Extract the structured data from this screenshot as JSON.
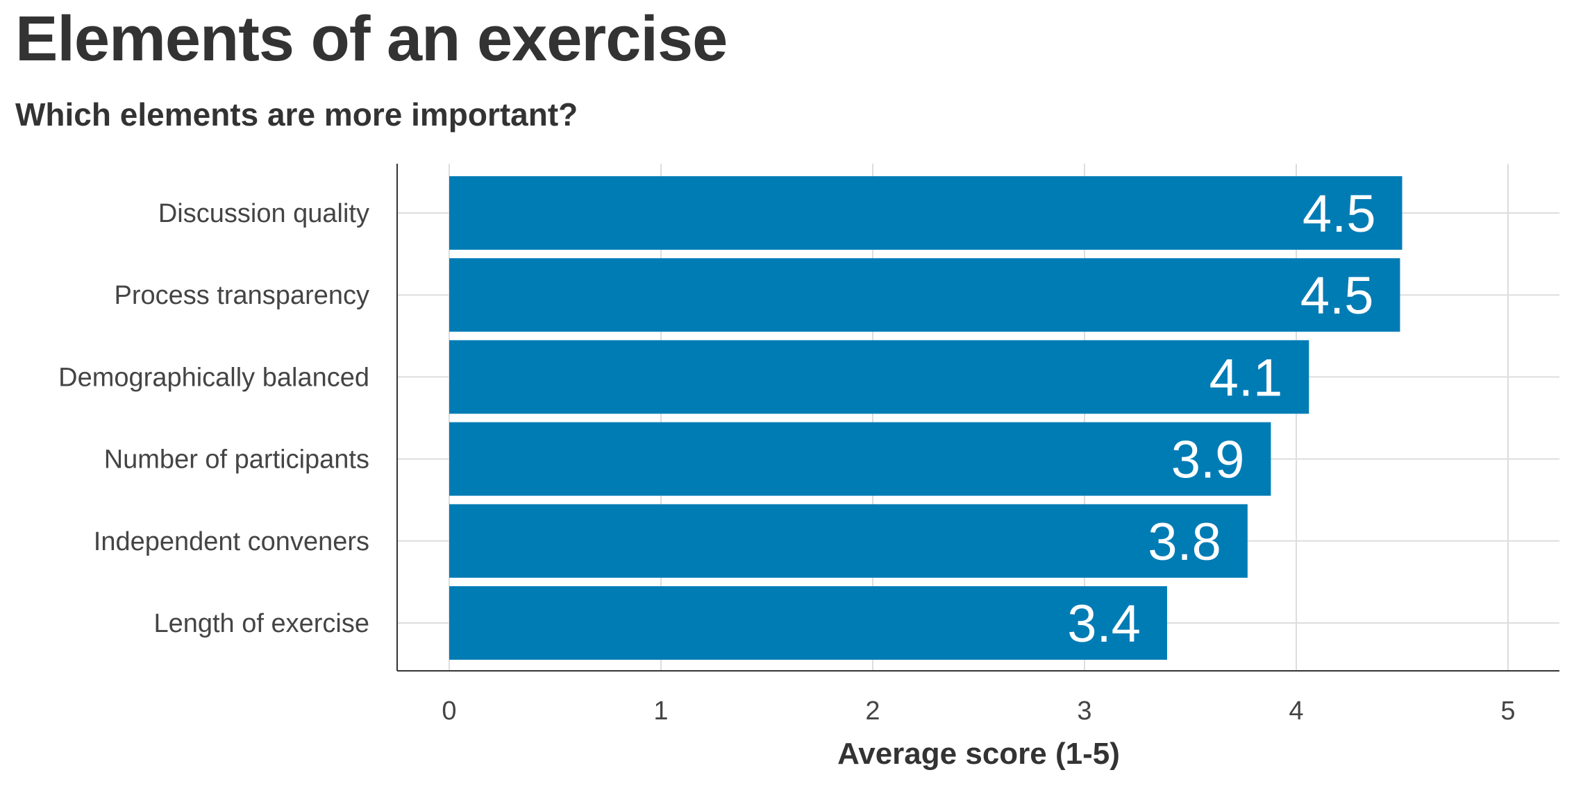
{
  "chart_data": {
    "type": "bar",
    "orientation": "horizontal",
    "title": "Elements of an exercise",
    "subtitle": "Which elements are more important?",
    "xlabel": "Average score (1-5)",
    "ylabel": "",
    "categories": [
      "Discussion quality",
      "Process transparency",
      "Demographically balanced",
      "Number of participants",
      "Independent conveners",
      "Length of exercise"
    ],
    "values": [
      4.5,
      4.49,
      4.06,
      3.88,
      3.77,
      3.39
    ],
    "value_labels": [
      "4.5",
      "4.5",
      "4.1",
      "3.9",
      "3.8",
      "3.4"
    ],
    "xlim": [
      0,
      5
    ],
    "xticks": [
      0,
      1,
      2,
      3,
      4,
      5
    ],
    "grid": true,
    "legend": "none",
    "bar_color": "#007cb5",
    "grid_color": "#dddddd"
  }
}
